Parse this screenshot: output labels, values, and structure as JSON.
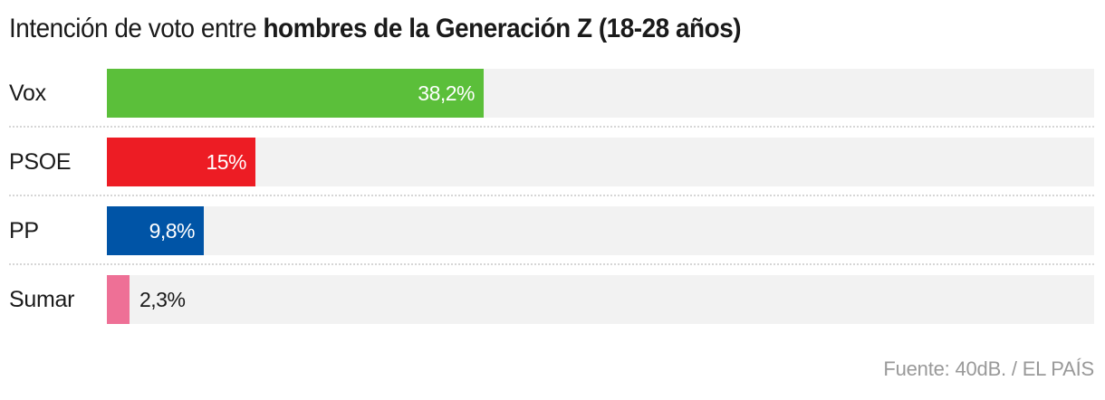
{
  "title": {
    "regular": "Intención de voto entre ",
    "bold": "hombres de la Generación Z (18-28 años)"
  },
  "source": "Fuente: 40dB. / EL PAÍS",
  "chart_data": {
    "type": "bar",
    "orientation": "horizontal",
    "title": "Intención de voto entre hombres de la Generación Z (18-28 años)",
    "xlabel": "",
    "ylabel": "",
    "xlim": [
      0,
      100
    ],
    "grid": false,
    "legend": null,
    "categories": [
      "Vox",
      "PSOE",
      "PP",
      "Sumar"
    ],
    "values": [
      38.2,
      15,
      9.8,
      2.3
    ],
    "value_labels": [
      "38,2%",
      "15%",
      "9,8%",
      "2,3%"
    ],
    "colors": [
      "#5bbf3a",
      "#ed1c24",
      "#0054a6",
      "#ee7096"
    ],
    "track_color": "#f2f2f2",
    "source": "Fuente: 40dB. / EL PAÍS"
  },
  "rows": [
    {
      "label": "Vox",
      "value": 38.2,
      "value_label": "38,2%",
      "color": "#5bbf3a"
    },
    {
      "label": "PSOE",
      "value": 15,
      "value_label": "15%",
      "color": "#ed1c24"
    },
    {
      "label": "PP",
      "value": 9.8,
      "value_label": "9,8%",
      "color": "#0054a6"
    },
    {
      "label": "Sumar",
      "value": 2.3,
      "value_label": "2,3%",
      "color": "#ee7096"
    }
  ]
}
